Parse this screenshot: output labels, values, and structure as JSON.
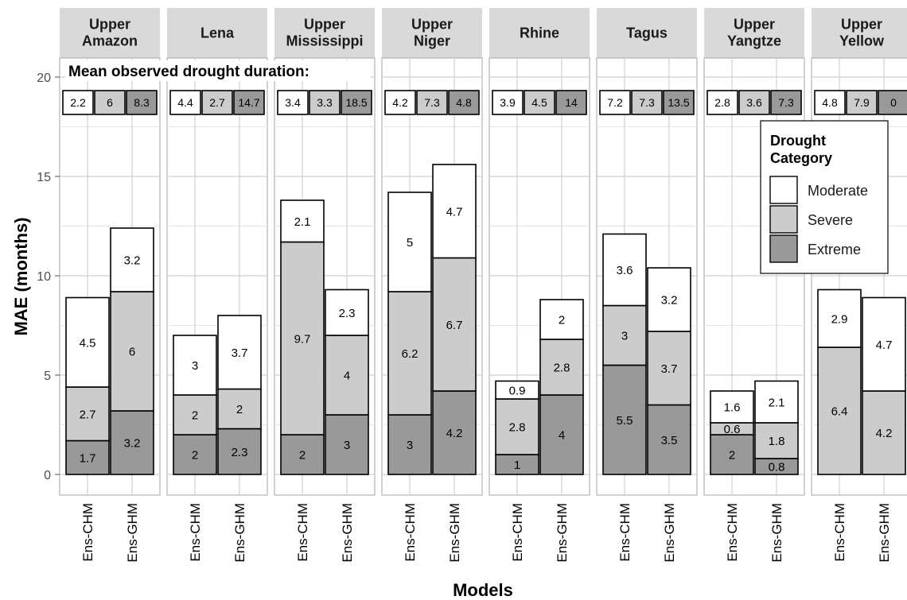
{
  "chart_data": {
    "type": "bar",
    "stacked": true,
    "facets": [
      {
        "title": "Upper\nAmazon",
        "observed": [
          "2.2",
          "6",
          "8.3"
        ],
        "bars": [
          {
            "model": "Ens-CHM",
            "extreme": 1.7,
            "severe": 2.7,
            "moderate": 4.5
          },
          {
            "model": "Ens-GHM",
            "extreme": 3.2,
            "severe": 6,
            "moderate": 3.2
          }
        ]
      },
      {
        "title": "Lena",
        "observed": [
          "4.4",
          "2.7",
          "14.7"
        ],
        "bars": [
          {
            "model": "Ens-CHM",
            "extreme": 2,
            "severe": 2,
            "moderate": 3
          },
          {
            "model": "Ens-GHM",
            "extreme": 2.3,
            "severe": 2,
            "moderate": 3.7
          }
        ]
      },
      {
        "title": "Upper\nMississippi",
        "observed": [
          "3.4",
          "3.3",
          "18.5"
        ],
        "bars": [
          {
            "model": "Ens-CHM",
            "extreme": 2,
            "severe": 9.7,
            "moderate": 2.1
          },
          {
            "model": "Ens-GHM",
            "extreme": 3,
            "severe": 4,
            "moderate": 2.3
          }
        ]
      },
      {
        "title": "Upper\nNiger",
        "observed": [
          "4.2",
          "7.3",
          "4.8"
        ],
        "bars": [
          {
            "model": "Ens-CHM",
            "extreme": 3,
            "severe": 6.2,
            "moderate": 5
          },
          {
            "model": "Ens-GHM",
            "extreme": 4.2,
            "severe": 6.7,
            "moderate": 4.7
          }
        ]
      },
      {
        "title": "Rhine",
        "observed": [
          "3.9",
          "4.5",
          "14"
        ],
        "bars": [
          {
            "model": "Ens-CHM",
            "extreme": 1,
            "severe": 2.8,
            "moderate": 0.9
          },
          {
            "model": "Ens-GHM",
            "extreme": 4,
            "severe": 2.8,
            "moderate": 2
          }
        ]
      },
      {
        "title": "Tagus",
        "observed": [
          "7.2",
          "7.3",
          "13.5"
        ],
        "bars": [
          {
            "model": "Ens-CHM",
            "extreme": 5.5,
            "severe": 3,
            "moderate": 3.6
          },
          {
            "model": "Ens-GHM",
            "extreme": 3.5,
            "severe": 3.7,
            "moderate": 3.2
          }
        ]
      },
      {
        "title": "Upper\nYangtze",
        "observed": [
          "2.8",
          "3.6",
          "7.3"
        ],
        "bars": [
          {
            "model": "Ens-CHM",
            "extreme": 2,
            "severe": 0.6,
            "moderate": 1.6
          },
          {
            "model": "Ens-GHM",
            "extreme": 0.8,
            "severe": 1.8,
            "moderate": 2.1
          }
        ]
      },
      {
        "title": "Upper\nYellow",
        "observed": [
          "4.8",
          "7.9",
          "0"
        ],
        "bars": [
          {
            "model": "Ens-CHM",
            "extreme": 0,
            "severe": 6.4,
            "moderate": 2.9
          },
          {
            "model": "Ens-GHM",
            "extreme": 0,
            "severe": 4.2,
            "moderate": 4.7
          }
        ]
      }
    ],
    "categories": [
      "Moderate",
      "Severe",
      "Extreme"
    ],
    "colors": {
      "Moderate": "#ffffff",
      "Severe": "#cccccc",
      "Extreme": "#999999"
    },
    "ylabel": "MAE (months)",
    "xlabel": "Models",
    "ylim": [
      0,
      20
    ],
    "yticks": [
      0,
      5,
      10,
      15,
      20
    ],
    "annotation": "Mean observed drought duration:",
    "legend": {
      "title": "Drought\nCategory",
      "entries": [
        "Moderate",
        "Severe",
        "Extreme"
      ],
      "position": "top-right"
    },
    "grid": true
  }
}
